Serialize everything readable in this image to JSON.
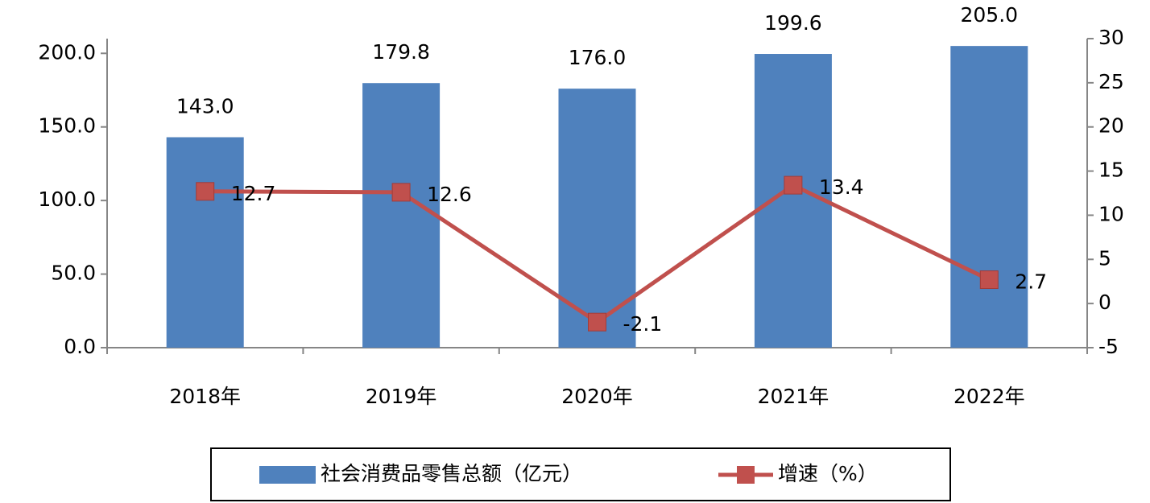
{
  "chart_data": {
    "type": "bar",
    "categories": [
      "2018年",
      "2019年",
      "2020年",
      "2021年",
      "2022年"
    ],
    "series": [
      {
        "name": "社会消费品零售总额（亿元）",
        "type": "bar",
        "color": "#4f81bd",
        "values": [
          143.0,
          179.8,
          176.0,
          199.6,
          205.0
        ],
        "value_labels": [
          "143.0",
          "179.8",
          "176.0",
          "199.6",
          "205.0"
        ]
      },
      {
        "name": "增速（%）",
        "type": "line",
        "axis": "y2",
        "color": "#c0504d",
        "values": [
          12.7,
          12.6,
          -2.1,
          13.4,
          2.7
        ]
      }
    ],
    "ylim": [
      0,
      210
    ],
    "yticks": [
      {
        "value": 0,
        "label": "0.0"
      },
      {
        "value": 50,
        "label": "50.0"
      },
      {
        "value": 100,
        "label": "100.0"
      },
      {
        "value": 150,
        "label": "150.0"
      },
      {
        "value": 200,
        "label": "200.0"
      }
    ],
    "y2lim": [
      -5,
      30
    ],
    "y2ticks": [
      -5,
      0,
      5,
      10,
      15,
      20,
      25,
      30
    ],
    "legend": "bottom"
  }
}
